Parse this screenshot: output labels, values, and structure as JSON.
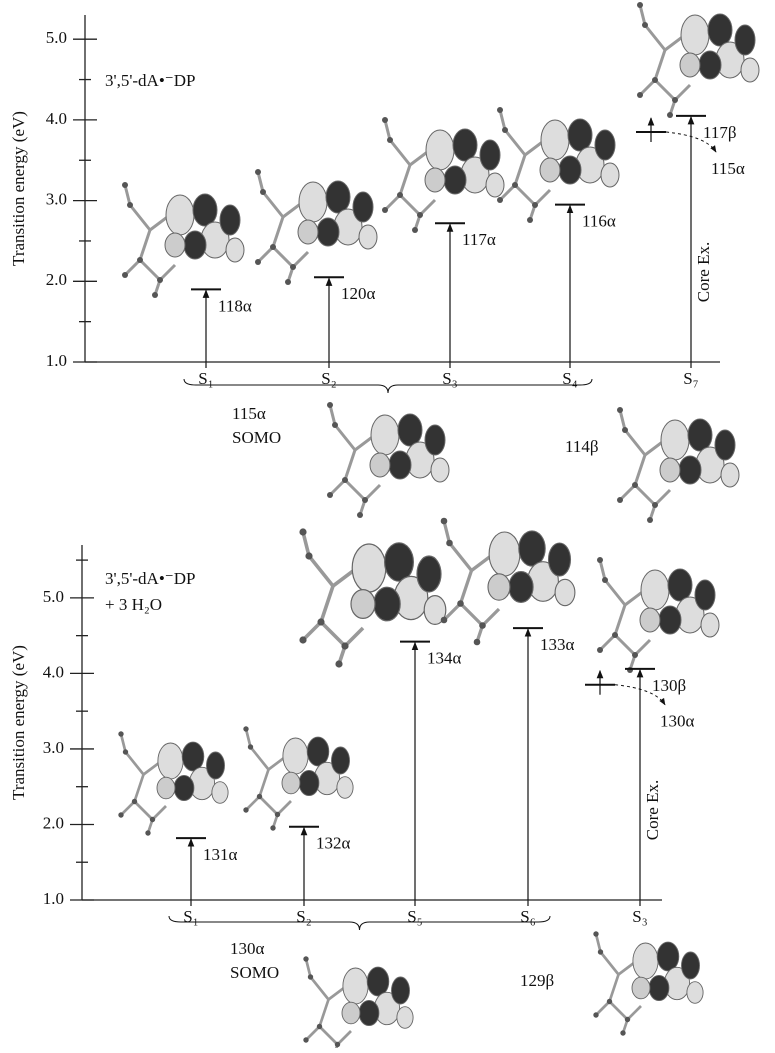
{
  "chart_data": [
    {
      "type": "transition",
      "title": "3',5'-dA•⁻DP",
      "y_label": "Transition energy (eV)",
      "categories": [
        "S₁",
        "S₂",
        "S₃",
        "S₄",
        "S₇"
      ],
      "values": [
        1.9,
        2.05,
        2.72,
        2.95,
        4.05
      ],
      "orbitals": [
        "118α",
        "120α",
        "117α",
        "116α",
        "117β"
      ],
      "ylim": [
        1.0,
        5.3
      ],
      "yticks": [
        {
          "value": 1,
          "label": "1.0"
        },
        {
          "value": 2,
          "label": "2.0"
        },
        {
          "value": 3,
          "label": "3.0"
        },
        {
          "value": 4,
          "label": "4.0"
        },
        {
          "value": 5,
          "label": "5.0"
        }
      ],
      "minor_yticks": [
        1.5,
        2.5,
        3.5,
        4.5
      ],
      "core_excitation": {
        "category_index": 4,
        "level": 3.85,
        "orbital": "115α",
        "label": "Core Ex."
      },
      "somo": {
        "orbital": "115α",
        "label": "SOMO",
        "span": [
          0,
          3
        ]
      },
      "extra_orbital": "114β"
    },
    {
      "type": "transition",
      "title": "3',5'-dA•⁻DP",
      "subtitle": "+ 3 H₂O",
      "y_label": "Transition energy (eV)",
      "categories": [
        "S₁",
        "S₂",
        "S₅",
        "S₆",
        "S₃"
      ],
      "values": [
        1.82,
        1.97,
        4.42,
        4.6,
        4.06
      ],
      "orbitals": [
        "131α",
        "132α",
        "134α",
        "133α",
        "130β"
      ],
      "ylim": [
        1.0,
        5.7
      ],
      "yticks": [
        {
          "value": 1,
          "label": "1.0"
        },
        {
          "value": 2,
          "label": "2.0"
        },
        {
          "value": 3,
          "label": "3.0"
        },
        {
          "value": 4,
          "label": "4.0"
        },
        {
          "value": 5,
          "label": "5.0"
        }
      ],
      "minor_yticks": [
        1.5,
        2.5,
        3.5,
        4.5,
        5.5
      ],
      "core_excitation": {
        "category_index": 4,
        "level": 3.85,
        "orbital": "130α",
        "label": "Core Ex."
      },
      "somo": {
        "orbital": "130α",
        "label": "SOMO",
        "span": [
          0,
          3
        ]
      },
      "extra_orbital": "129β"
    }
  ]
}
